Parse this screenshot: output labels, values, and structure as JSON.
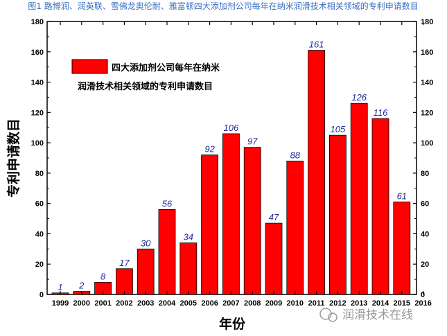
{
  "figure_title": "图1 路博润、润英联、雪佛龙奥伦耐、雅富顿四大添加剂公司每年在纳米润滑技术相关领域的专利申请数目",
  "watermark": "润滑技术在线",
  "colors": {
    "bar": "#ff0000",
    "value_label": "#1f2a9a",
    "title": "#3a6fc4"
  },
  "chart_data": {
    "type": "bar",
    "title": "",
    "xlabel": "年份",
    "ylabel": "专利申请数目",
    "categories": [
      "1999",
      "2000",
      "2001",
      "2002",
      "2003",
      "2004",
      "2005",
      "2006",
      "2007",
      "2008",
      "2009",
      "2010",
      "2011",
      "2012",
      "2013",
      "2014",
      "2015"
    ],
    "x_ticks": [
      "1999",
      "2000",
      "2001",
      "2002",
      "2003",
      "2004",
      "2005",
      "2006",
      "2007",
      "2008",
      "2009",
      "2010",
      "2011",
      "2012",
      "2013",
      "2014",
      "2015",
      "2016"
    ],
    "series": [
      {
        "name": "四大添加剂公司每年在纳米润滑技术相关领域的专利申请数目",
        "values": [
          1,
          2,
          8,
          17,
          30,
          56,
          34,
          92,
          106,
          97,
          47,
          88,
          161,
          105,
          126,
          116,
          61
        ]
      }
    ],
    "legend_lines": [
      "四大添加剂公司每年在纳米",
      "润滑技术相关领域的专利申请数目"
    ],
    "ylim": [
      0,
      180
    ],
    "y_ticks": [
      0,
      20,
      40,
      60,
      80,
      100,
      120,
      140,
      160,
      180
    ],
    "y_tick_labels": [
      "0",
      "20",
      "40",
      "60",
      "80",
      "100",
      "120",
      "140",
      "160",
      "180"
    ],
    "grid": false,
    "legend_position": "top-left",
    "mirror_right_axis": true
  }
}
